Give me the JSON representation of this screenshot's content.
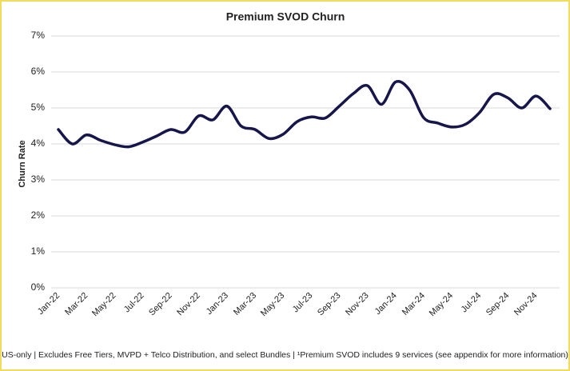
{
  "chart_data": {
    "type": "line",
    "title": "Premium SVOD Churn",
    "y_label": "Churn Rate",
    "categories": [
      "Jan-22",
      null,
      "Mar-22",
      null,
      "May-22",
      null,
      "Jul-22",
      null,
      "Sep-22",
      null,
      "Nov-22",
      null,
      "Jan-23",
      null,
      "Mar-23",
      null,
      "May-23",
      null,
      "Jul-23",
      null,
      "Sep-23",
      null,
      "Nov-23",
      null,
      "Jan-24",
      null,
      "Mar-24",
      null,
      "May-24",
      null,
      "Jul-24",
      null,
      "Sep-24",
      null,
      "Nov-24",
      null
    ],
    "series": [
      {
        "name": "Premium SVOD Churn",
        "color": "#16164a",
        "values": [
          4.4,
          4.0,
          4.25,
          4.1,
          3.98,
          3.92,
          4.05,
          4.22,
          4.4,
          4.33,
          4.78,
          4.67,
          5.05,
          4.5,
          4.4,
          4.15,
          4.27,
          4.62,
          4.75,
          4.72,
          5.05,
          5.4,
          5.62,
          5.1,
          5.72,
          5.5,
          4.73,
          4.58,
          4.47,
          4.55,
          4.88,
          5.38,
          5.28,
          5.0,
          5.33,
          4.98
        ]
      }
    ],
    "ylim": [
      0,
      7
    ],
    "yticks": [
      {
        "value": 0,
        "label": "0%"
      },
      {
        "value": 1,
        "label": "1%"
      },
      {
        "value": 2,
        "label": "2%"
      },
      {
        "value": 3,
        "label": "3%"
      },
      {
        "value": 4,
        "label": "4%"
      },
      {
        "value": 5,
        "label": "5%"
      },
      {
        "value": 6,
        "label": "6%"
      },
      {
        "value": 7,
        "label": "7%"
      }
    ],
    "grid": true,
    "footnote": "US-only | Excludes Free Tiers, MVPD + Telco Distribution, and select Bundles | ¹Premium SVOD includes 9 services (see appendix for more information)"
  }
}
